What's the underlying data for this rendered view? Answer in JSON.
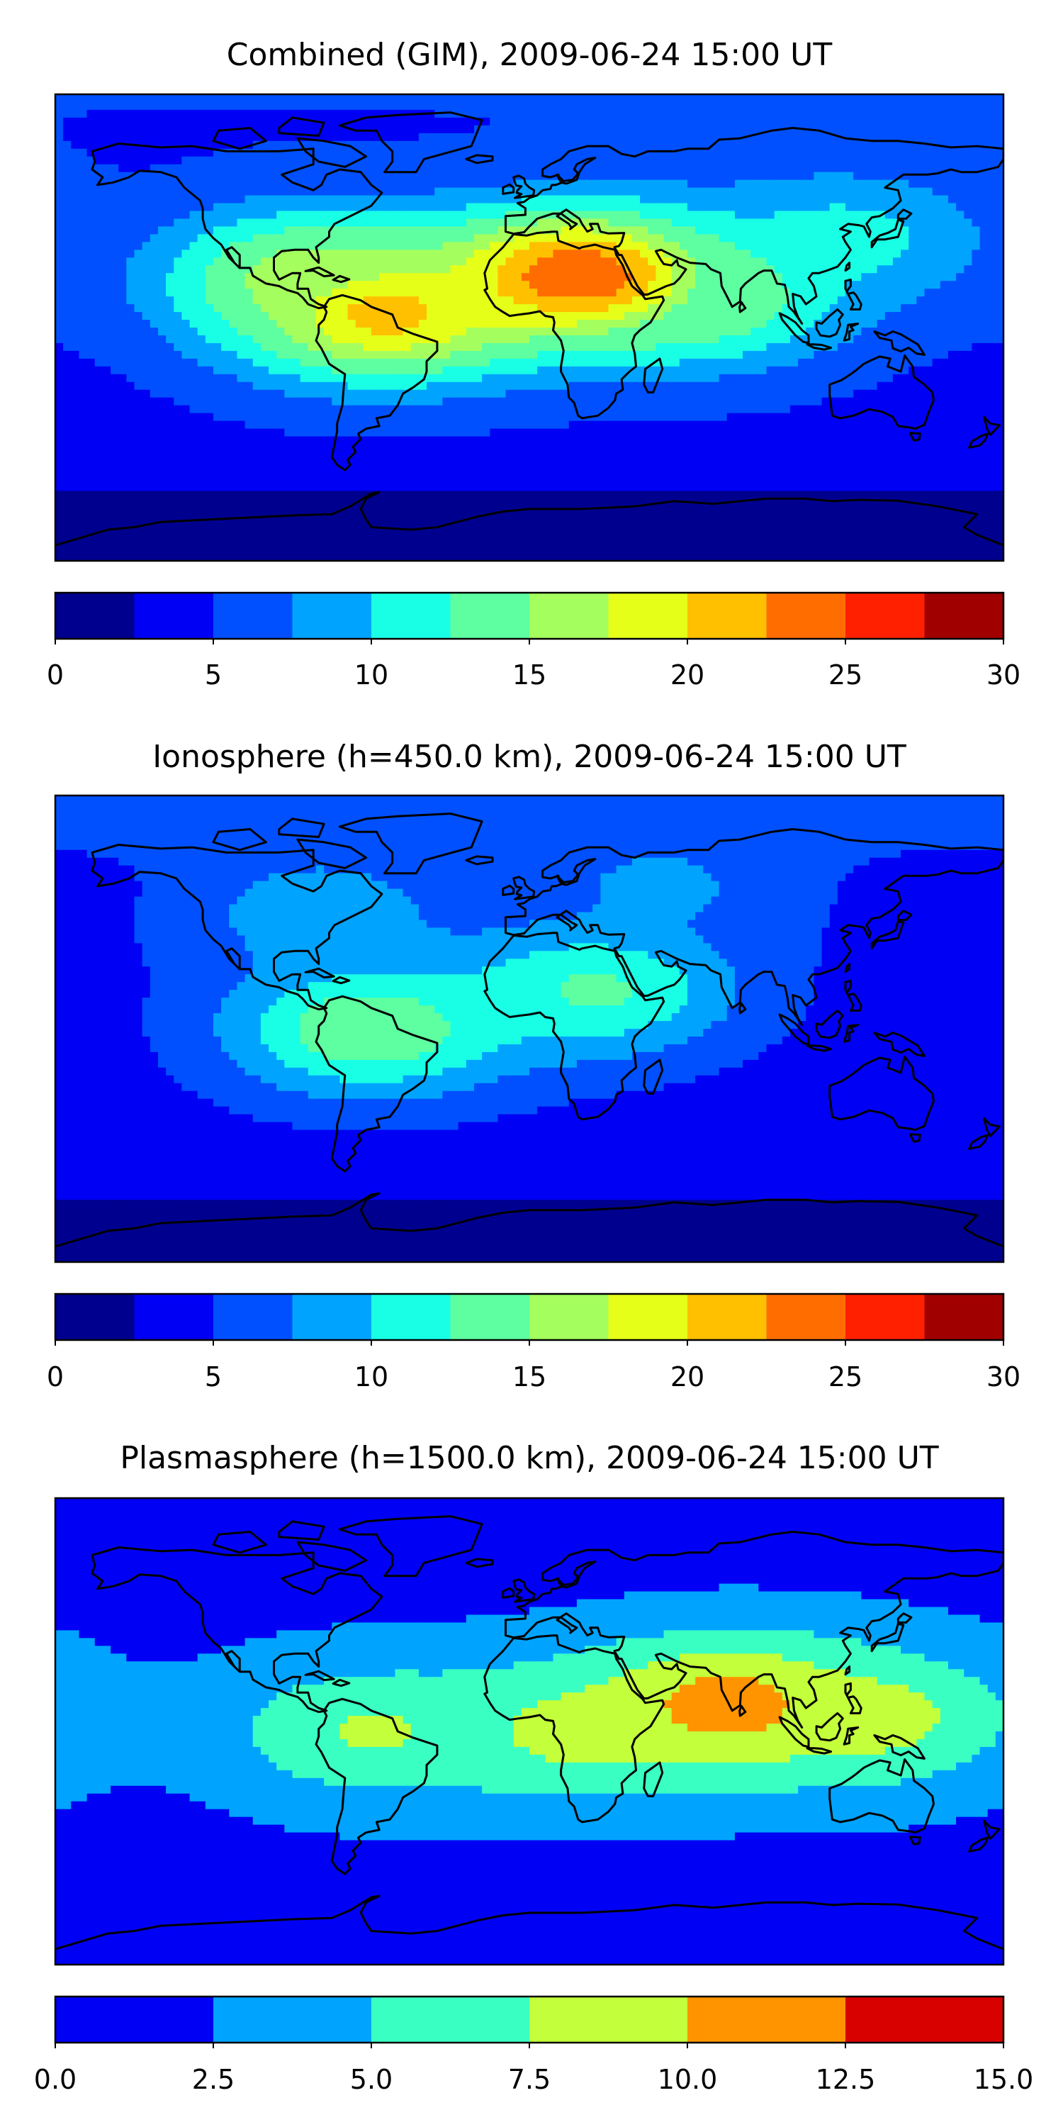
{
  "chart_data": [
    {
      "type": "heatmap",
      "title": "Combined (GIM), 2009-06-24 15:00 UT",
      "xlabel": "",
      "ylabel": "",
      "colorbar": {
        "ticks": [
          "0",
          "5",
          "10",
          "15",
          "20",
          "25",
          "30"
        ],
        "range": [
          0,
          30
        ],
        "step": 2.5,
        "colors": [
          "#00008f",
          "#0000f5",
          "#0050ff",
          "#00a4ff",
          "#19ffe6",
          "#5effa0",
          "#a4ff5e",
          "#e6ff19",
          "#ffc000",
          "#ff6d00",
          "#ff2000",
          "#a00000"
        ]
      },
      "field": {
        "background": 4.5,
        "peaks": [
          {
            "name": "northern Africa / Arabia",
            "lon": 18,
            "lat": 20,
            "value": 25
          },
          {
            "name": "South America",
            "lon": -55,
            "lat": 5,
            "value": 21
          },
          {
            "name": "Central America",
            "lon": -85,
            "lat": 20,
            "value": 16
          },
          {
            "name": "northern Indian Ocean",
            "lon": 65,
            "lat": 12,
            "value": 15
          },
          {
            "name": "East Asia",
            "lon": 120,
            "lat": 35,
            "value": 11
          }
        ],
        "south_polar": 1.5,
        "north_polar": 5
      }
    },
    {
      "type": "heatmap",
      "title": "Ionosphere  (h=450.0 km), 2009-06-24 15:00 UT",
      "xlabel": "",
      "ylabel": "",
      "colorbar": {
        "ticks": [
          "0",
          "5",
          "10",
          "15",
          "20",
          "25",
          "30"
        ],
        "range": [
          0,
          30
        ],
        "step": 2.5,
        "colors": [
          "#00008f",
          "#0000f5",
          "#0050ff",
          "#00a4ff",
          "#19ffe6",
          "#5effa0",
          "#a4ff5e",
          "#e6ff19",
          "#ffc000",
          "#ff6d00",
          "#ff2000",
          "#a00000"
        ]
      },
      "field": {
        "background": 4,
        "peaks": [
          {
            "name": "South America",
            "lon": -60,
            "lat": 0,
            "value": 15
          },
          {
            "name": "northern Africa / Arabia",
            "lon": 25,
            "lat": 15,
            "value": 13
          },
          {
            "name": "North America",
            "lon": -80,
            "lat": 45,
            "value": 9
          },
          {
            "name": "Eurasia",
            "lon": 50,
            "lat": 55,
            "value": 8
          }
        ],
        "south_polar": 2,
        "north_polar": 6
      }
    },
    {
      "type": "heatmap",
      "title": "Plasmasphere (h=1500.0 km), 2009-06-24 15:00 UT",
      "xlabel": "",
      "ylabel": "",
      "colorbar": {
        "ticks": [
          "0.0",
          "2.5",
          "5.0",
          "7.5",
          "10.0",
          "12.5",
          "15.0"
        ],
        "range": [
          0,
          15
        ],
        "step": 2.5,
        "colors": [
          "#0000f5",
          "#00a4ff",
          "#3affc3",
          "#c3ff3a",
          "#ff9400",
          "#d90000"
        ]
      },
      "field": {
        "background": 2,
        "peaks": [
          {
            "name": "northern Indian Ocean",
            "lon": 75,
            "lat": 10,
            "value": 11.5
          },
          {
            "name": "equatorial band",
            "lon": 20,
            "lat": 0,
            "value": 8.5
          },
          {
            "name": "equatorial band east",
            "lon": 130,
            "lat": 5,
            "value": 8.5
          },
          {
            "name": "South America",
            "lon": -60,
            "lat": 0,
            "value": 7.8
          }
        ],
        "south_polar": 1,
        "north_polar": 1
      }
    }
  ]
}
